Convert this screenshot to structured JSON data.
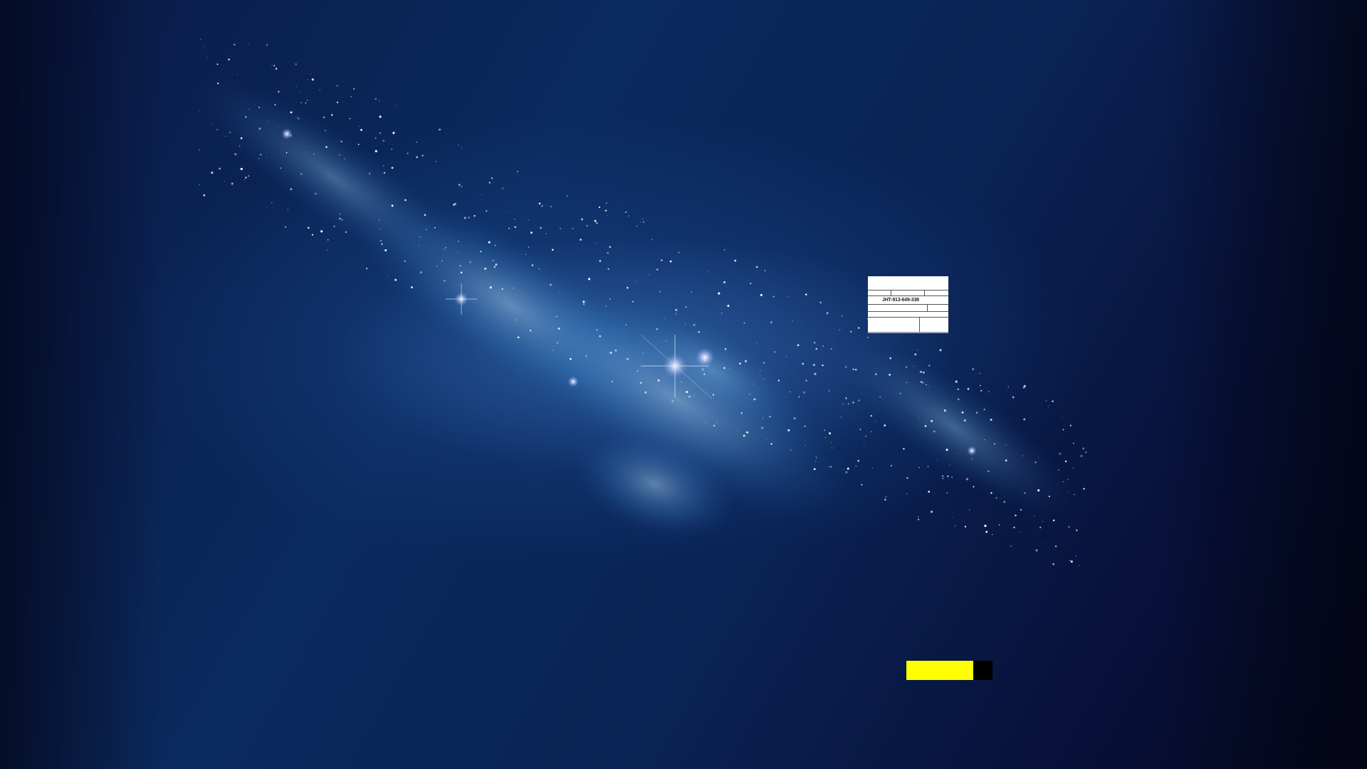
{
  "wallpaper": {
    "subject": "galaxy-nebula",
    "colors": {
      "deep_navy": "#070f36",
      "mid_blue": "#0b2a5e",
      "glow_blue": "#4682c8",
      "star_white": "#ffffff"
    }
  },
  "widget": {
    "code_text": "JHT-913-649-338",
    "background": "#ffffff"
  },
  "status_bar": {
    "fill_color": "#ffff00",
    "track_color": "#000000",
    "progress_fraction": 0.78
  }
}
